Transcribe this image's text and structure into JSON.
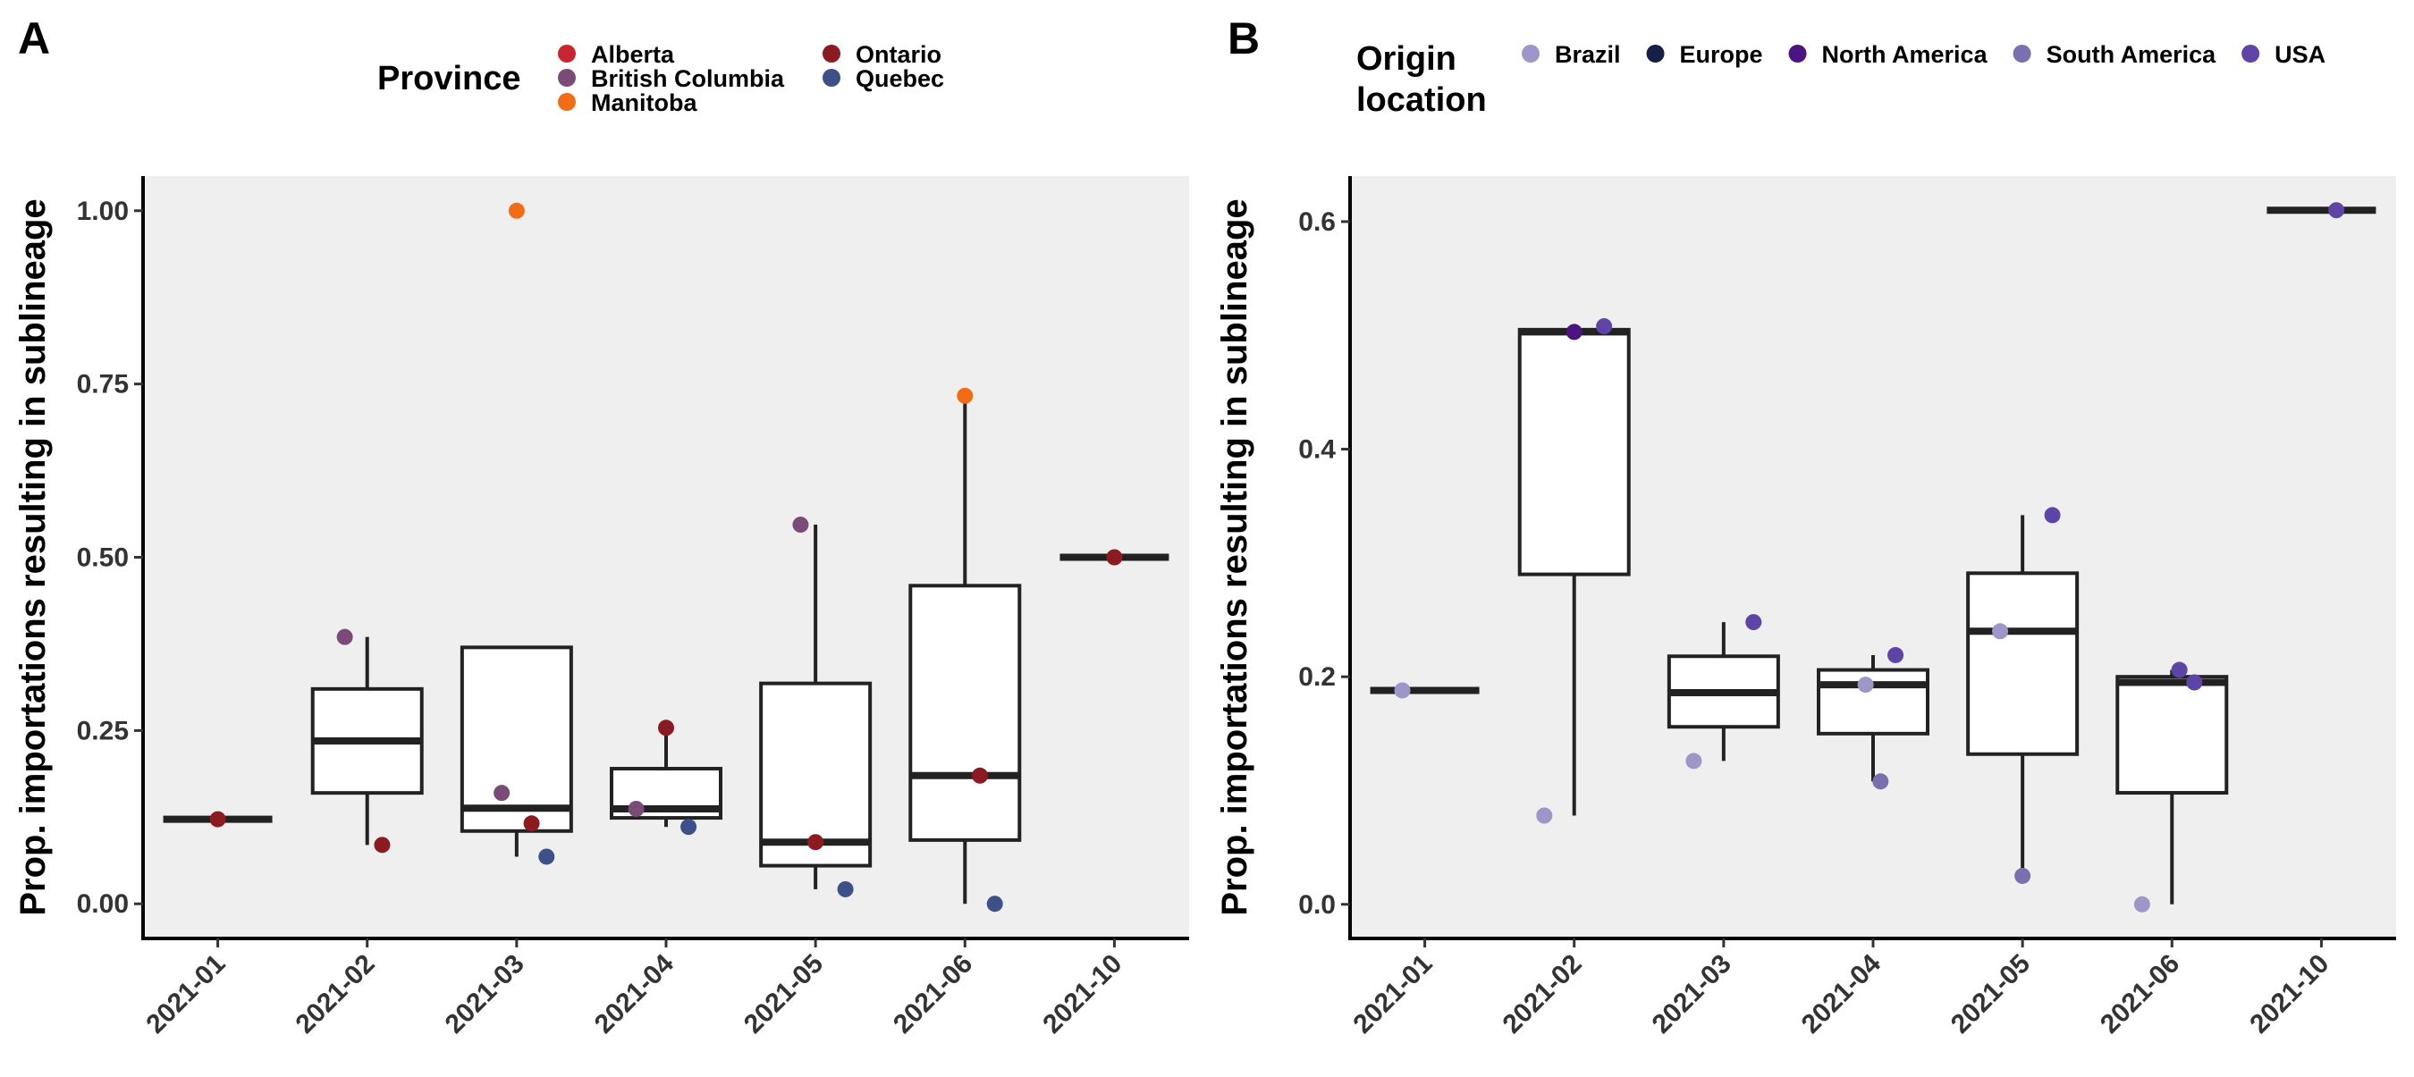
{
  "figure": {
    "panels": [
      {
        "letter": "A",
        "legend_title": "Province",
        "legend": [
          {
            "label": "Alberta",
            "color": "#c7262f"
          },
          {
            "label": "British Columbia",
            "color": "#7b4b78"
          },
          {
            "label": "Manitoba",
            "color": "#f26b15"
          },
          {
            "label": "Ontario",
            "color": "#8b1a21"
          },
          {
            "label": "Quebec",
            "color": "#3d5089"
          }
        ]
      },
      {
        "letter": "B",
        "legend_title": "Origin location",
        "legend": [
          {
            "label": "Brazil",
            "color": "#9d96c9"
          },
          {
            "label": "Europe",
            "color": "#162046"
          },
          {
            "label": "North America",
            "color": "#4b1480"
          },
          {
            "label": "South America",
            "color": "#7a70b0"
          },
          {
            "label": "USA",
            "color": "#5d44a6"
          }
        ]
      }
    ]
  },
  "chart_data": [
    {
      "type": "box",
      "panel": "A",
      "xlabel": "",
      "ylabel": "Prop. importations resulting in sublineage",
      "ylim": [
        -0.05,
        1.05
      ],
      "y_ticks": [
        "0.00",
        "0.25",
        "0.50",
        "0.75",
        "1.00"
      ],
      "categories": [
        "2021-01",
        "2021-02",
        "2021-03",
        "2021-04",
        "2021-05",
        "2021-06",
        "2021-10"
      ],
      "boxes": [
        {
          "category": "2021-01",
          "q1": 0.122,
          "median": 0.122,
          "q3": 0.122,
          "whisker_low": 0.122,
          "whisker_high": 0.122
        },
        {
          "category": "2021-02",
          "q1": 0.16,
          "median": 0.235,
          "q3": 0.31,
          "whisker_low": 0.085,
          "whisker_high": 0.385
        },
        {
          "category": "2021-03",
          "q1": 0.105,
          "median": 0.138,
          "q3": 0.37,
          "whisker_low": 0.068,
          "whisker_high": 0.37
        },
        {
          "category": "2021-04",
          "q1": 0.124,
          "median": 0.137,
          "q3": 0.195,
          "whisker_low": 0.111,
          "whisker_high": 0.254
        },
        {
          "category": "2021-05",
          "q1": 0.055,
          "median": 0.089,
          "q3": 0.318,
          "whisker_low": 0.021,
          "whisker_high": 0.547
        },
        {
          "category": "2021-06",
          "q1": 0.092,
          "median": 0.185,
          "q3": 0.459,
          "whisker_low": 0.0,
          "whisker_high": 0.733
        },
        {
          "category": "2021-10",
          "q1": 0.5,
          "median": 0.5,
          "q3": 0.5,
          "whisker_low": 0.5,
          "whisker_high": 0.5
        }
      ],
      "points": [
        {
          "category": "2021-01",
          "group": "Ontario",
          "value": 0.122,
          "jitter": 0.0
        },
        {
          "category": "2021-02",
          "group": "British Columbia",
          "value": 0.385,
          "jitter": -0.15
        },
        {
          "category": "2021-02",
          "group": "Ontario",
          "value": 0.085,
          "jitter": 0.1
        },
        {
          "category": "2021-03",
          "group": "Manitoba",
          "value": 1.0,
          "jitter": 0.0
        },
        {
          "category": "2021-03",
          "group": "British Columbia",
          "value": 0.16,
          "jitter": -0.1
        },
        {
          "category": "2021-03",
          "group": "Ontario",
          "value": 0.116,
          "jitter": 0.1
        },
        {
          "category": "2021-03",
          "group": "Quebec",
          "value": 0.068,
          "jitter": 0.2
        },
        {
          "category": "2021-04",
          "group": "Ontario",
          "value": 0.254,
          "jitter": 0.0
        },
        {
          "category": "2021-04",
          "group": "British Columbia",
          "value": 0.137,
          "jitter": -0.2
        },
        {
          "category": "2021-04",
          "group": "Quebec",
          "value": 0.111,
          "jitter": 0.15
        },
        {
          "category": "2021-05",
          "group": "British Columbia",
          "value": 0.547,
          "jitter": -0.1
        },
        {
          "category": "2021-05",
          "group": "Ontario",
          "value": 0.089,
          "jitter": 0.0
        },
        {
          "category": "2021-05",
          "group": "Quebec",
          "value": 0.021,
          "jitter": 0.2
        },
        {
          "category": "2021-06",
          "group": "Manitoba",
          "value": 0.733,
          "jitter": 0.0
        },
        {
          "category": "2021-06",
          "group": "Ontario",
          "value": 0.185,
          "jitter": 0.1
        },
        {
          "category": "2021-06",
          "group": "Quebec",
          "value": 0.0,
          "jitter": 0.2
        },
        {
          "category": "2021-10",
          "group": "Ontario",
          "value": 0.5,
          "jitter": 0.0
        }
      ],
      "grid": false
    },
    {
      "type": "box",
      "panel": "B",
      "xlabel": "",
      "ylabel": "Prop. importations resulting in sublineage",
      "ylim": [
        -0.03,
        0.64
      ],
      "y_ticks": [
        "0.0",
        "0.2",
        "0.4",
        "0.6"
      ],
      "categories": [
        "2021-01",
        "2021-02",
        "2021-03",
        "2021-04",
        "2021-05",
        "2021-06",
        "2021-10"
      ],
      "boxes": [
        {
          "category": "2021-01",
          "q1": 0.188,
          "median": 0.188,
          "q3": 0.188,
          "whisker_low": 0.188,
          "whisker_high": 0.188
        },
        {
          "category": "2021-02",
          "q1": 0.29,
          "median": 0.503,
          "q3": 0.505,
          "whisker_low": 0.078,
          "whisker_high": 0.508
        },
        {
          "category": "2021-03",
          "q1": 0.156,
          "median": 0.186,
          "q3": 0.218,
          "whisker_low": 0.126,
          "whisker_high": 0.248
        },
        {
          "category": "2021-04",
          "q1": 0.15,
          "median": 0.193,
          "q3": 0.206,
          "whisker_low": 0.108,
          "whisker_high": 0.219
        },
        {
          "category": "2021-05",
          "q1": 0.132,
          "median": 0.24,
          "q3": 0.291,
          "whisker_low": 0.025,
          "whisker_high": 0.342
        },
        {
          "category": "2021-06",
          "q1": 0.098,
          "median": 0.195,
          "q3": 0.2,
          "whisker_low": 0.0,
          "whisker_high": 0.206
        },
        {
          "category": "2021-10",
          "q1": 0.61,
          "median": 0.61,
          "q3": 0.61,
          "whisker_low": 0.61,
          "whisker_high": 0.61
        }
      ],
      "points": [
        {
          "category": "2021-01",
          "group": "Brazil",
          "value": 0.188,
          "jitter": -0.15
        },
        {
          "category": "2021-02",
          "group": "North America",
          "value": 0.503,
          "jitter": 0.0
        },
        {
          "category": "2021-02",
          "group": "USA",
          "value": 0.508,
          "jitter": 0.2
        },
        {
          "category": "2021-02",
          "group": "Brazil",
          "value": 0.078,
          "jitter": -0.2
        },
        {
          "category": "2021-03",
          "group": "USA",
          "value": 0.248,
          "jitter": 0.2
        },
        {
          "category": "2021-03",
          "group": "Brazil",
          "value": 0.126,
          "jitter": -0.2
        },
        {
          "category": "2021-04",
          "group": "USA",
          "value": 0.219,
          "jitter": 0.15
        },
        {
          "category": "2021-04",
          "group": "Brazil",
          "value": 0.193,
          "jitter": -0.05
        },
        {
          "category": "2021-04",
          "group": "South America",
          "value": 0.108,
          "jitter": 0.05
        },
        {
          "category": "2021-05",
          "group": "USA",
          "value": 0.342,
          "jitter": 0.2
        },
        {
          "category": "2021-05",
          "group": "Brazil",
          "value": 0.24,
          "jitter": -0.15
        },
        {
          "category": "2021-05",
          "group": "South America",
          "value": 0.025,
          "jitter": 0.0
        },
        {
          "category": "2021-06",
          "group": "USA",
          "value": 0.206,
          "jitter": 0.05
        },
        {
          "category": "2021-06",
          "group": "USA",
          "value": 0.195,
          "jitter": 0.15
        },
        {
          "category": "2021-06",
          "group": "Brazil",
          "value": 0.0,
          "jitter": -0.2
        },
        {
          "category": "2021-10",
          "group": "USA",
          "value": 0.61,
          "jitter": 0.1
        }
      ],
      "grid": false
    }
  ]
}
